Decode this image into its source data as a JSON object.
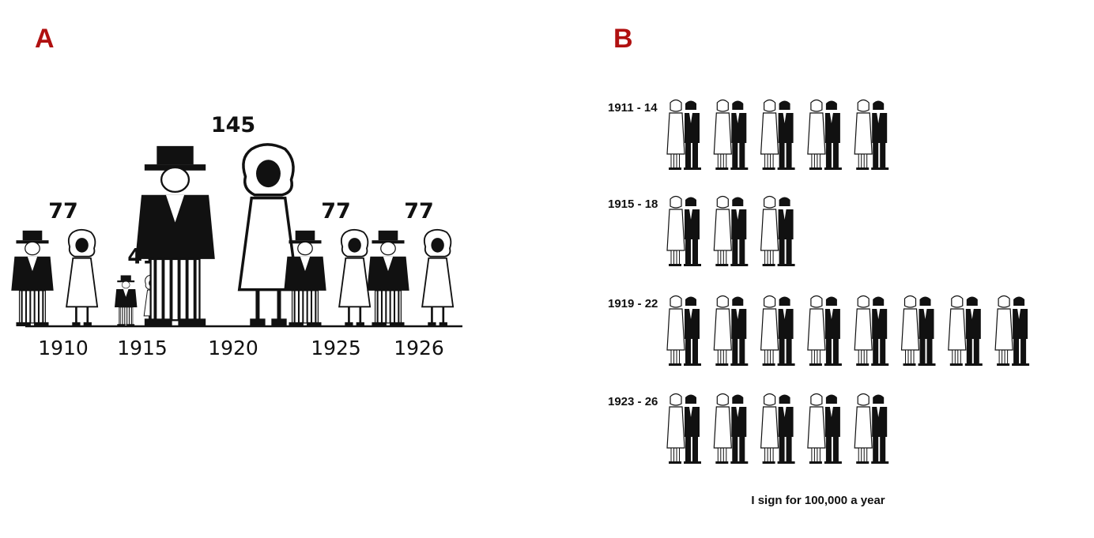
{
  "panels": {
    "a_label": "A",
    "b_label": "B"
  },
  "colors": {
    "panel_label": "#b01010",
    "ink": "#111111",
    "paper": "#ffffff"
  },
  "chart_data": [
    {
      "type": "bar",
      "categories": [
        "1910",
        "1915",
        "1920",
        "1925",
        "1926"
      ],
      "values": [
        77,
        41,
        145,
        77,
        77
      ],
      "data_labels": [
        "77",
        "41",
        "145",
        "77",
        "77"
      ],
      "marks": "man-and-woman pictogram pairs scaled by value",
      "ylim": [
        0,
        145
      ]
    },
    {
      "type": "bar",
      "categories": [
        "1911 - 14",
        "1915 - 18",
        "1919 - 22",
        "1923 - 26"
      ],
      "values": [
        5,
        3,
        8,
        5
      ],
      "marks": "couple pictograms, one per unit",
      "unit_note": "I sign for 100,000 a year"
    }
  ]
}
